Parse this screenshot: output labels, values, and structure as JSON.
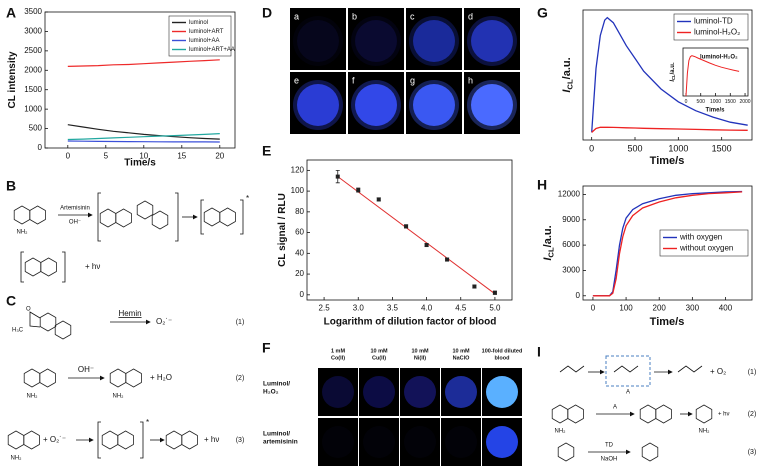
{
  "chart_data": [
    {
      "panel_label": "A",
      "type": "line",
      "xlabel": "Time/s",
      "ylabel": "CL intensity",
      "x": [
        0,
        2,
        4,
        6,
        8,
        10,
        12,
        14,
        16,
        18,
        20
      ],
      "series": [
        {
          "name": "luminol",
          "color": "#222222",
          "values": [
            600,
            540,
            480,
            430,
            390,
            350,
            320,
            290,
            265,
            245,
            230
          ]
        },
        {
          "name": "luminol+ART",
          "color": "#ee2a2a",
          "values": [
            2100,
            2110,
            2120,
            2140,
            2150,
            2170,
            2190,
            2210,
            2230,
            2250,
            2270
          ]
        },
        {
          "name": "luminol+AA",
          "color": "#3a4fd8",
          "values": [
            180,
            175,
            170,
            168,
            165,
            162,
            160,
            158,
            157,
            156,
            155
          ]
        },
        {
          "name": "luminol+ART+AA",
          "color": "#22a8a0",
          "values": [
            220,
            230,
            245,
            260,
            275,
            290,
            305,
            320,
            335,
            350,
            370
          ]
        }
      ],
      "xlim": [
        -3,
        22
      ],
      "ylim": [
        0,
        3500
      ],
      "xticks": [
        0,
        5,
        10,
        15,
        20
      ],
      "yticks": [
        0,
        500,
        1000,
        1500,
        2000,
        2500,
        3000,
        3500
      ],
      "legend": "upper right"
    },
    {
      "panel_label": "E",
      "type": "scatter",
      "xlabel": "Logarithm of dilution factor of blood",
      "ylabel": "CL signal / RLU",
      "x": [
        2.7,
        3.0,
        3.3,
        3.7,
        4.0,
        4.3,
        4.7,
        5.0
      ],
      "values": [
        114,
        101,
        92,
        66,
        48,
        34,
        8,
        2
      ],
      "errors": [
        6,
        2,
        1.5,
        1.5,
        1.5,
        1.5,
        1.5,
        1.5
      ],
      "color": "#222222",
      "trend": {
        "x": [
          2.7,
          5.0
        ],
        "values": [
          114,
          1
        ],
        "color": "#e03030"
      },
      "xlim": [
        2.25,
        5.25
      ],
      "ylim": [
        -5,
        130
      ],
      "xticks": [
        2.5,
        {
          "value": 3,
          "label": "3.0"
        },
        3.5,
        {
          "value": 4,
          "label": "4.0"
        },
        4.5,
        {
          "value": 5,
          "label": "5.0"
        }
      ],
      "yticks": [
        0,
        20,
        40,
        60,
        80,
        100,
        120
      ]
    },
    {
      "panel_label": "G",
      "type": "line",
      "xlabel": "Time/s",
      "ylabel": "I",
      "ylabel_sub": "CL",
      "ylabel_unit": "/a.u.",
      "x": [
        0,
        50,
        100,
        150,
        180,
        250,
        300,
        400,
        500,
        600,
        800,
        1000,
        1200,
        1400,
        1600,
        1800
      ],
      "series": [
        {
          "name": "luminol-TD",
          "color": "#2233bb",
          "values": [
            0,
            2500,
            3800,
            4400,
            4500,
            4300,
            4000,
            3400,
            2900,
            2400,
            1700,
            1200,
            850,
            600,
            400,
            280
          ]
        },
        {
          "name": "luminol-H₂O₂",
          "color": "#ee2222",
          "values": [
            0,
            150,
            200,
            200,
            200,
            195,
            190,
            180,
            170,
            160,
            145,
            130,
            115,
            100,
            90,
            80
          ]
        }
      ],
      "xlim": [
        -100,
        1850
      ],
      "ylim": [
        -300,
        4800
      ],
      "xticks": [
        0,
        500,
        1000,
        1500
      ],
      "legend": "upper right"
    },
    {
      "type": "line",
      "annotation": "luminol-H₂O₂",
      "xlabel": "Time/s",
      "ylabel": "I",
      "ylabel_sub": "CL",
      "ylabel_unit": "/a.u.",
      "x": [
        0,
        50,
        100,
        150,
        200,
        300,
        400,
        600,
        800,
        1000,
        1200,
        1400,
        1600,
        1800
      ],
      "values": [
        0,
        120,
        185,
        205,
        210,
        205,
        198,
        185,
        172,
        160,
        150,
        142,
        135,
        128
      ],
      "color": "#ee2222",
      "xlim": [
        -100,
        2100
      ],
      "ylim": [
        0,
        250
      ],
      "xticks": [
        0,
        500,
        1000,
        1500,
        2000
      ]
    },
    {
      "panel_label": "H",
      "type": "line",
      "xlabel": "Time/s",
      "ylabel": "I",
      "ylabel_sub": "CL",
      "ylabel_unit": "/a.u.",
      "x": [
        0,
        50,
        60,
        70,
        80,
        90,
        100,
        120,
        150,
        200,
        250,
        300,
        350,
        400,
        450
      ],
      "series": [
        {
          "name": "with oxygen",
          "color": "#2233bb",
          "values": [
            0,
            0,
            500,
            3000,
            6000,
            8000,
            9200,
            10200,
            10900,
            11500,
            11900,
            12100,
            12200,
            12300,
            12350
          ]
        },
        {
          "name": "without oxygen",
          "color": "#ee2222",
          "values": [
            0,
            0,
            300,
            2000,
            5000,
            7000,
            8300,
            9500,
            10400,
            11100,
            11600,
            11900,
            12100,
            12200,
            12300
          ]
        }
      ],
      "xlim": [
        -30,
        480
      ],
      "ylim": [
        -500,
        13000
      ],
      "xticks": [
        0,
        100,
        200,
        300,
        400
      ],
      "yticks": [
        0,
        3000,
        6000,
        9000,
        12000
      ],
      "legend": "center right"
    }
  ],
  "scheme_B": {
    "label": "B",
    "reagent": "Artemisinin",
    "base": "OH⁻",
    "excited": "*",
    "light": "+ hν",
    "amine": "NH₂"
  },
  "scheme_C": {
    "label": "C",
    "catalyst": "Hemin",
    "superoxide": "O₂˙⁻",
    "base": "OH⁻",
    "water": "+ H₂O",
    "plus_superoxide": "+ O₂˙⁻",
    "excited": "*",
    "light": "+ hν",
    "numbers": [
      "(1)",
      "(2)",
      "(3)"
    ],
    "amine": "NH₂",
    "methyl": "H₃C",
    "ring_o": "O"
  },
  "panel_D": {
    "label": "D",
    "wells": [
      "a",
      "b",
      "c",
      "d",
      "e",
      "f",
      "g",
      "h"
    ],
    "well_colors": [
      "#06061c",
      "#0a0a30",
      "#1a2a9a",
      "#2232b2",
      "#2a3cd4",
      "#3248e8",
      "#3a58f2",
      "#4a6aff"
    ]
  },
  "panel_F": {
    "label": "F",
    "columns": [
      [
        "1 mM",
        "Co(II)"
      ],
      [
        "10 mM",
        "Cu(II)"
      ],
      [
        "10 mM",
        "Ni(II)"
      ],
      [
        "10 mM",
        "NaClO"
      ],
      [
        "100-fold diluted",
        "blood"
      ]
    ],
    "rows": [
      [
        "Luminol/",
        "H₂O₂"
      ],
      [
        "Luminol/",
        "artemisinin"
      ]
    ],
    "well_colors": [
      [
        "#0a0a34",
        "#0c0c44",
        "#121258",
        "#1c2c98",
        "#5ab0ff"
      ],
      [
        "#020208",
        "#020208",
        "#020208",
        "#020208",
        "#2444e6"
      ]
    ]
  },
  "scheme_I": {
    "label": "I",
    "numbers": [
      "(1)",
      "(2)",
      "(3)"
    ],
    "catalyst": "A",
    "reagent": "TD",
    "base": "NaOH",
    "oxygen": "+ O₂",
    "light": "+ hν",
    "amine": "NH₂"
  }
}
